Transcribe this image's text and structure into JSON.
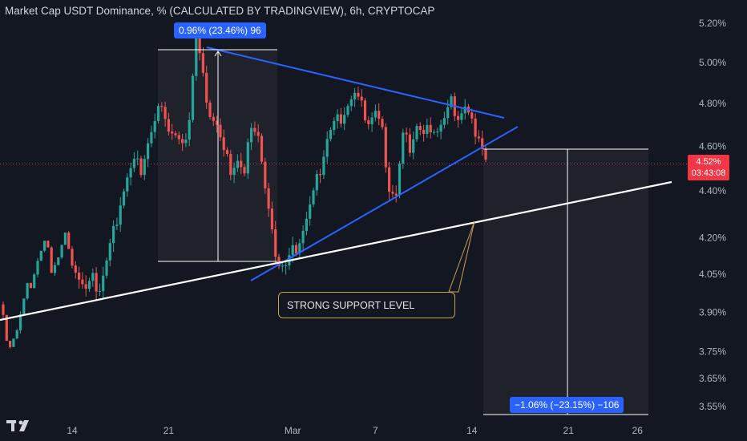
{
  "header": {
    "title": "Market Cap USDT Dominance, % (CALCULATED BY TRADINGVIEW), 6h, CRYPTOCAP"
  },
  "price_tag": {
    "value": "4.52%",
    "countdown": "03:43:08",
    "color": "#f23645"
  },
  "measures": {
    "up": "0.96% (23.46%) 96",
    "down": "−1.06% (−23.15%) −106"
  },
  "annotation": {
    "text": "STRONG SUPPORT LEVEL"
  },
  "colors": {
    "background": "#131722",
    "up": "#26a69a",
    "down": "#ef5350",
    "trendline": "#2962ff",
    "support": "#ffffff",
    "callout_border": "#c9a04a"
  },
  "icons": {
    "brand": "tradingview-logo-icon"
  },
  "chart_data": {
    "type": "candlestick",
    "title": "Market Cap USDT Dominance, % (CALCULATED BY TRADINGVIEW), 6h, CRYPTOCAP",
    "y_scale": "log",
    "ylim": [
      3.52,
      5.26
    ],
    "y_ticks": [
      "5.20%",
      "5.00%",
      "4.80%",
      "4.60%",
      "4.40%",
      "4.20%",
      "4.05%",
      "3.90%",
      "3.75%",
      "3.65%",
      "3.55%"
    ],
    "y_tick_values": [
      5.2,
      5.0,
      4.8,
      4.6,
      4.4,
      4.2,
      4.05,
      3.9,
      3.75,
      3.65,
      3.55
    ],
    "x_ticks": [
      {
        "label": "14",
        "index": 0
      },
      {
        "label": "21",
        "index": 28
      },
      {
        "label": "Mar",
        "index": 64
      },
      {
        "label": "7",
        "index": 88
      },
      {
        "label": "14",
        "index": 116
      },
      {
        "label": "21",
        "index": 144
      },
      {
        "label": "26",
        "index": 164
      }
    ],
    "last_price": 4.52,
    "grid": false,
    "legend": "none",
    "anchors": [
      [
        -20,
        3.93
      ],
      [
        -18,
        3.86
      ],
      [
        -16,
        3.9
      ],
      [
        -13,
        4.05
      ],
      [
        -10,
        4.18
      ],
      [
        -8,
        4.24
      ],
      [
        -6,
        4.16
      ],
      [
        -4,
        4.2
      ],
      [
        -2,
        4.28
      ],
      [
        0,
        4.12
      ],
      [
        2,
        4.04
      ],
      [
        4,
        3.98
      ],
      [
        6,
        4.02
      ],
      [
        8,
        4.0
      ],
      [
        10,
        4.1
      ],
      [
        12,
        4.22
      ],
      [
        14,
        4.36
      ],
      [
        16,
        4.46
      ],
      [
        18,
        4.52
      ],
      [
        20,
        4.5
      ],
      [
        22,
        4.62
      ],
      [
        24,
        4.7
      ],
      [
        26,
        4.82
      ],
      [
        28,
        4.68
      ],
      [
        30,
        4.64
      ],
      [
        32,
        4.58
      ],
      [
        34,
        4.74
      ],
      [
        36,
        5.14
      ],
      [
        38,
        4.92
      ],
      [
        40,
        4.76
      ],
      [
        42,
        4.7
      ],
      [
        44,
        4.56
      ],
      [
        46,
        4.5
      ],
      [
        48,
        4.54
      ],
      [
        50,
        4.46
      ],
      [
        52,
        4.72
      ],
      [
        54,
        4.66
      ],
      [
        56,
        4.4
      ],
      [
        58,
        4.2
      ],
      [
        60,
        4.1
      ],
      [
        62,
        4.08
      ],
      [
        64,
        4.14
      ],
      [
        66,
        4.2
      ],
      [
        68,
        4.28
      ],
      [
        70,
        4.38
      ],
      [
        72,
        4.5
      ],
      [
        74,
        4.64
      ],
      [
        76,
        4.7
      ],
      [
        78,
        4.74
      ],
      [
        80,
        4.8
      ],
      [
        82,
        4.84
      ],
      [
        84,
        4.78
      ],
      [
        86,
        4.72
      ],
      [
        88,
        4.76
      ],
      [
        90,
        4.66
      ],
      [
        92,
        4.42
      ],
      [
        94,
        4.38
      ],
      [
        96,
        4.64
      ],
      [
        98,
        4.6
      ],
      [
        100,
        4.7
      ],
      [
        102,
        4.64
      ],
      [
        104,
        4.7
      ],
      [
        106,
        4.68
      ],
      [
        108,
        4.72
      ],
      [
        110,
        4.8
      ],
      [
        112,
        4.74
      ],
      [
        114,
        4.78
      ],
      [
        116,
        4.7
      ],
      [
        118,
        4.66
      ],
      [
        120,
        4.54
      ]
    ]
  }
}
